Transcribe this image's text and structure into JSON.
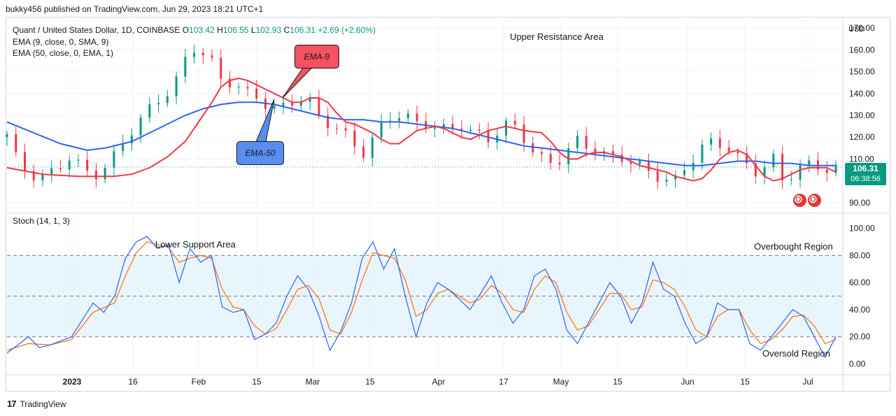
{
  "header": {
    "publisher_text": "bukky456 published on TradingView.com, Jun 29, 2023 18:21 UTC+1"
  },
  "legend": {
    "symbol": "Quant / United States Dollar, 1D, COINBASE",
    "o_label": "O",
    "o_value": "103.42",
    "h_label": "H",
    "h_value": "106.55",
    "l_label": "L",
    "l_value": "102.93",
    "c_label": "C",
    "c_value": "106.31",
    "change": "+2.69 (+2.60%)",
    "ema9": "EMA (9, close, 0, SMA, 9)",
    "ema50": "EMA (50, close, 0, EMA, 1)",
    "stoch": "Stoch (14, 1, 3)"
  },
  "price_axis": {
    "currency": "USD",
    "ticks": [
      "170.00",
      "160.00",
      "150.00",
      "140.00",
      "130.00",
      "120.00",
      "110.00",
      "90.00"
    ]
  },
  "stoch_axis": {
    "ticks": [
      "100.00",
      "80.00",
      "60.00",
      "40.00",
      "20.00",
      "0.00"
    ]
  },
  "x_axis": {
    "ticks": [
      "2023",
      "16",
      "Feb",
      "15",
      "Mar",
      "15",
      "Apr",
      "17",
      "May",
      "15",
      "Jun",
      "15",
      "Jul"
    ]
  },
  "price_tag": {
    "price": "106.31",
    "countdown": "06:38:56"
  },
  "annotations": {
    "upper_resistance": "Upper Resistance Area",
    "lower_support": "Lower Support Area",
    "overbought": "Overbought Region",
    "oversold": "Oversold Region",
    "ema9_callout": "EMA-9",
    "ema50_callout": "EMA-50"
  },
  "footer": {
    "brand": "TradingView",
    "logo_mark": "17"
  },
  "colors": {
    "bull": "#089981",
    "bear": "#f23645",
    "ema9": "#f23645",
    "ema50": "#2962ff",
    "stoch_k": "#2962ff",
    "stoch_d": "#ff6d00",
    "band_fill": "#e3f2fd",
    "ema9_callout_bg": "#f7525f",
    "ema50_callout_bg": "#5b8def"
  },
  "chart_data": {
    "type": "candlestick",
    "price_range": [
      88,
      172
    ],
    "ema9_points": [
      [
        0,
        106
      ],
      [
        4,
        103
      ],
      [
        8,
        102
      ],
      [
        12,
        102
      ],
      [
        14,
        103
      ],
      [
        16,
        106
      ],
      [
        18,
        111
      ],
      [
        20,
        118
      ],
      [
        22,
        130
      ],
      [
        23,
        136
      ],
      [
        24,
        143
      ],
      [
        25,
        146
      ],
      [
        26,
        147
      ],
      [
        27,
        146
      ],
      [
        28,
        144
      ],
      [
        29,
        142
      ],
      [
        30,
        140
      ],
      [
        31,
        138
      ],
      [
        32,
        136
      ],
      [
        33,
        136
      ],
      [
        34,
        138
      ],
      [
        35,
        138
      ],
      [
        36,
        136
      ],
      [
        37,
        131
      ],
      [
        38,
        127
      ],
      [
        39,
        126
      ],
      [
        40,
        124
      ],
      [
        41,
        122
      ],
      [
        42,
        119
      ],
      [
        43,
        117
      ],
      [
        44,
        117
      ],
      [
        45,
        120
      ],
      [
        46,
        123
      ],
      [
        47,
        124
      ],
      [
        48,
        125
      ],
      [
        49,
        124
      ],
      [
        50,
        122
      ],
      [
        51,
        120
      ],
      [
        52,
        119
      ],
      [
        53,
        121
      ],
      [
        54,
        123
      ],
      [
        55,
        124
      ],
      [
        56,
        125
      ],
      [
        57,
        124
      ],
      [
        58,
        123
      ],
      [
        60,
        122
      ],
      [
        61,
        118
      ],
      [
        62,
        113
      ],
      [
        63,
        110
      ],
      [
        64,
        110
      ],
      [
        65,
        112
      ],
      [
        66,
        113
      ],
      [
        67,
        113
      ],
      [
        68,
        112
      ],
      [
        69,
        111
      ],
      [
        70,
        109
      ],
      [
        71,
        107
      ],
      [
        72,
        106
      ],
      [
        73,
        105
      ],
      [
        74,
        104
      ],
      [
        75,
        102
      ],
      [
        76,
        101
      ],
      [
        77,
        100
      ],
      [
        78,
        101
      ],
      [
        79,
        105
      ],
      [
        80,
        110
      ],
      [
        81,
        113
      ],
      [
        82,
        114
      ],
      [
        83,
        112
      ],
      [
        84,
        107
      ],
      [
        85,
        102
      ],
      [
        86,
        100
      ],
      [
        87,
        101
      ],
      [
        88,
        103
      ],
      [
        89,
        105
      ],
      [
        90,
        106
      ],
      [
        91,
        106
      ],
      [
        92,
        106
      ],
      [
        93,
        104
      ]
    ],
    "ema50_points": [
      [
        0,
        127
      ],
      [
        3,
        122
      ],
      [
        6,
        117
      ],
      [
        9,
        114
      ],
      [
        11,
        115
      ],
      [
        14,
        118
      ],
      [
        16,
        122
      ],
      [
        18,
        126
      ],
      [
        20,
        130
      ],
      [
        22,
        133
      ],
      [
        24,
        135
      ],
      [
        26,
        136
      ],
      [
        28,
        136
      ],
      [
        30,
        135
      ],
      [
        32,
        133
      ],
      [
        34,
        131
      ],
      [
        36,
        129
      ],
      [
        38,
        128
      ],
      [
        40,
        128
      ],
      [
        42,
        127
      ],
      [
        44,
        127
      ],
      [
        46,
        126
      ],
      [
        48,
        125
      ],
      [
        50,
        124
      ],
      [
        52,
        122
      ],
      [
        54,
        120
      ],
      [
        56,
        118
      ],
      [
        58,
        116
      ],
      [
        60,
        115
      ],
      [
        62,
        114
      ],
      [
        64,
        113
      ],
      [
        66,
        112
      ],
      [
        68,
        111
      ],
      [
        70,
        110
      ],
      [
        72,
        109
      ],
      [
        74,
        108
      ],
      [
        76,
        107
      ],
      [
        78,
        107
      ],
      [
        80,
        108
      ],
      [
        82,
        109
      ],
      [
        84,
        109
      ],
      [
        86,
        108
      ],
      [
        88,
        108
      ],
      [
        90,
        107
      ],
      [
        92,
        107
      ],
      [
        93,
        107
      ]
    ],
    "close_points": [
      [
        0,
        120
      ],
      [
        1,
        108
      ],
      [
        2,
        104
      ],
      [
        3,
        103
      ],
      [
        4,
        104
      ],
      [
        5,
        106
      ],
      [
        6,
        110
      ],
      [
        7,
        105
      ],
      [
        8,
        103
      ],
      [
        9,
        107
      ],
      [
        10,
        112
      ],
      [
        11,
        118
      ],
      [
        12,
        124
      ],
      [
        13,
        132
      ],
      [
        14,
        138
      ],
      [
        15,
        142
      ],
      [
        16,
        148
      ],
      [
        17,
        160
      ],
      [
        18,
        158
      ],
      [
        19,
        155
      ],
      [
        20,
        147
      ],
      [
        21,
        146
      ],
      [
        22,
        140
      ],
      [
        23,
        138
      ],
      [
        24,
        134
      ],
      [
        25,
        133
      ],
      [
        26,
        137
      ],
      [
        27,
        138
      ],
      [
        28,
        136
      ],
      [
        29,
        128
      ],
      [
        30,
        125
      ],
      [
        31,
        124
      ],
      [
        32,
        120
      ],
      [
        33,
        112
      ],
      [
        34,
        118
      ],
      [
        35,
        126
      ],
      [
        36,
        130
      ],
      [
        37,
        131
      ],
      [
        38,
        128
      ],
      [
        39,
        126
      ],
      [
        40,
        123
      ],
      [
        41,
        122
      ],
      [
        42,
        126
      ],
      [
        43,
        124
      ],
      [
        44,
        122
      ],
      [
        45,
        118
      ],
      [
        46,
        124
      ],
      [
        47,
        125
      ],
      [
        48,
        120
      ],
      [
        49,
        114
      ],
      [
        50,
        110
      ],
      [
        51,
        107
      ],
      [
        52,
        112
      ],
      [
        53,
        118
      ],
      [
        54,
        116
      ],
      [
        55,
        115
      ],
      [
        56,
        111
      ],
      [
        57,
        110
      ],
      [
        58,
        107
      ],
      [
        59,
        106
      ],
      [
        60,
        104
      ],
      [
        61,
        102
      ],
      [
        62,
        100
      ],
      [
        63,
        105
      ],
      [
        64,
        110
      ],
      [
        65,
        118
      ],
      [
        66,
        119
      ],
      [
        67,
        116
      ],
      [
        68,
        110
      ],
      [
        69,
        105
      ],
      [
        70,
        101
      ],
      [
        71,
        113
      ],
      [
        72,
        102
      ],
      [
        73,
        104
      ],
      [
        74,
        107
      ],
      [
        75,
        106
      ],
      [
        76,
        104
      ],
      [
        77,
        106
      ]
    ],
    "stoch_k_points": [
      [
        0,
        8
      ],
      [
        2,
        20
      ],
      [
        3,
        12
      ],
      [
        4,
        14
      ],
      [
        6,
        20
      ],
      [
        8,
        45
      ],
      [
        9,
        38
      ],
      [
        10,
        50
      ],
      [
        11,
        78
      ],
      [
        12,
        90
      ],
      [
        13,
        94
      ],
      [
        14,
        85
      ],
      [
        15,
        88
      ],
      [
        16,
        60
      ],
      [
        17,
        85
      ],
      [
        18,
        75
      ],
      [
        19,
        80
      ],
      [
        20,
        42
      ],
      [
        21,
        38
      ],
      [
        22,
        40
      ],
      [
        23,
        18
      ],
      [
        24,
        22
      ],
      [
        25,
        30
      ],
      [
        26,
        50
      ],
      [
        27,
        65
      ],
      [
        28,
        55
      ],
      [
        29,
        35
      ],
      [
        30,
        10
      ],
      [
        31,
        24
      ],
      [
        32,
        45
      ],
      [
        33,
        78
      ],
      [
        34,
        90
      ],
      [
        35,
        70
      ],
      [
        36,
        85
      ],
      [
        37,
        50
      ],
      [
        38,
        20
      ],
      [
        39,
        45
      ],
      [
        40,
        60
      ],
      [
        41,
        55
      ],
      [
        42,
        48
      ],
      [
        43,
        40
      ],
      [
        44,
        52
      ],
      [
        45,
        65
      ],
      [
        46,
        45
      ],
      [
        47,
        30
      ],
      [
        48,
        40
      ],
      [
        49,
        65
      ],
      [
        50,
        70
      ],
      [
        51,
        55
      ],
      [
        52,
        25
      ],
      [
        53,
        15
      ],
      [
        54,
        30
      ],
      [
        55,
        45
      ],
      [
        56,
        60
      ],
      [
        57,
        50
      ],
      [
        58,
        30
      ],
      [
        59,
        45
      ],
      [
        60,
        75
      ],
      [
        61,
        55
      ],
      [
        62,
        50
      ],
      [
        63,
        30
      ],
      [
        64,
        15
      ],
      [
        65,
        20
      ],
      [
        66,
        45
      ],
      [
        67,
        40
      ],
      [
        68,
        40
      ],
      [
        69,
        15
      ],
      [
        70,
        10
      ],
      [
        71,
        20
      ],
      [
        72,
        30
      ],
      [
        73,
        40
      ],
      [
        74,
        35
      ],
      [
        75,
        20
      ],
      [
        76,
        5
      ],
      [
        77,
        20
      ]
    ],
    "stoch_d_points": [
      [
        0,
        10
      ],
      [
        2,
        15
      ],
      [
        4,
        14
      ],
      [
        6,
        18
      ],
      [
        8,
        38
      ],
      [
        10,
        45
      ],
      [
        11,
        65
      ],
      [
        12,
        82
      ],
      [
        13,
        90
      ],
      [
        14,
        88
      ],
      [
        15,
        86
      ],
      [
        16,
        75
      ],
      [
        17,
        78
      ],
      [
        18,
        80
      ],
      [
        19,
        78
      ],
      [
        20,
        55
      ],
      [
        21,
        42
      ],
      [
        22,
        40
      ],
      [
        23,
        28
      ],
      [
        24,
        22
      ],
      [
        25,
        26
      ],
      [
        26,
        40
      ],
      [
        27,
        55
      ],
      [
        28,
        58
      ],
      [
        29,
        48
      ],
      [
        30,
        25
      ],
      [
        31,
        22
      ],
      [
        32,
        38
      ],
      [
        33,
        62
      ],
      [
        34,
        82
      ],
      [
        35,
        80
      ],
      [
        36,
        78
      ],
      [
        37,
        62
      ],
      [
        38,
        35
      ],
      [
        39,
        40
      ],
      [
        40,
        52
      ],
      [
        41,
        55
      ],
      [
        42,
        50
      ],
      [
        43,
        45
      ],
      [
        44,
        48
      ],
      [
        45,
        58
      ],
      [
        46,
        52
      ],
      [
        47,
        40
      ],
      [
        48,
        38
      ],
      [
        49,
        55
      ],
      [
        50,
        65
      ],
      [
        51,
        60
      ],
      [
        52,
        38
      ],
      [
        53,
        25
      ],
      [
        54,
        28
      ],
      [
        55,
        40
      ],
      [
        56,
        52
      ],
      [
        57,
        52
      ],
      [
        58,
        40
      ],
      [
        59,
        42
      ],
      [
        60,
        62
      ],
      [
        61,
        60
      ],
      [
        62,
        55
      ],
      [
        63,
        42
      ],
      [
        64,
        25
      ],
      [
        65,
        20
      ],
      [
        66,
        35
      ],
      [
        67,
        40
      ],
      [
        68,
        40
      ],
      [
        69,
        25
      ],
      [
        70,
        15
      ],
      [
        71,
        18
      ],
      [
        72,
        25
      ],
      [
        73,
        35
      ],
      [
        74,
        36
      ],
      [
        75,
        28
      ],
      [
        76,
        15
      ],
      [
        77,
        18
      ]
    ],
    "stoch_range": [
      -8,
      106
    ],
    "stoch_levels": {
      "upper": 80,
      "middle": 50,
      "lower": 20
    },
    "last_close": 106.31,
    "grid": true,
    "title": "Quant / United States Dollar"
  }
}
